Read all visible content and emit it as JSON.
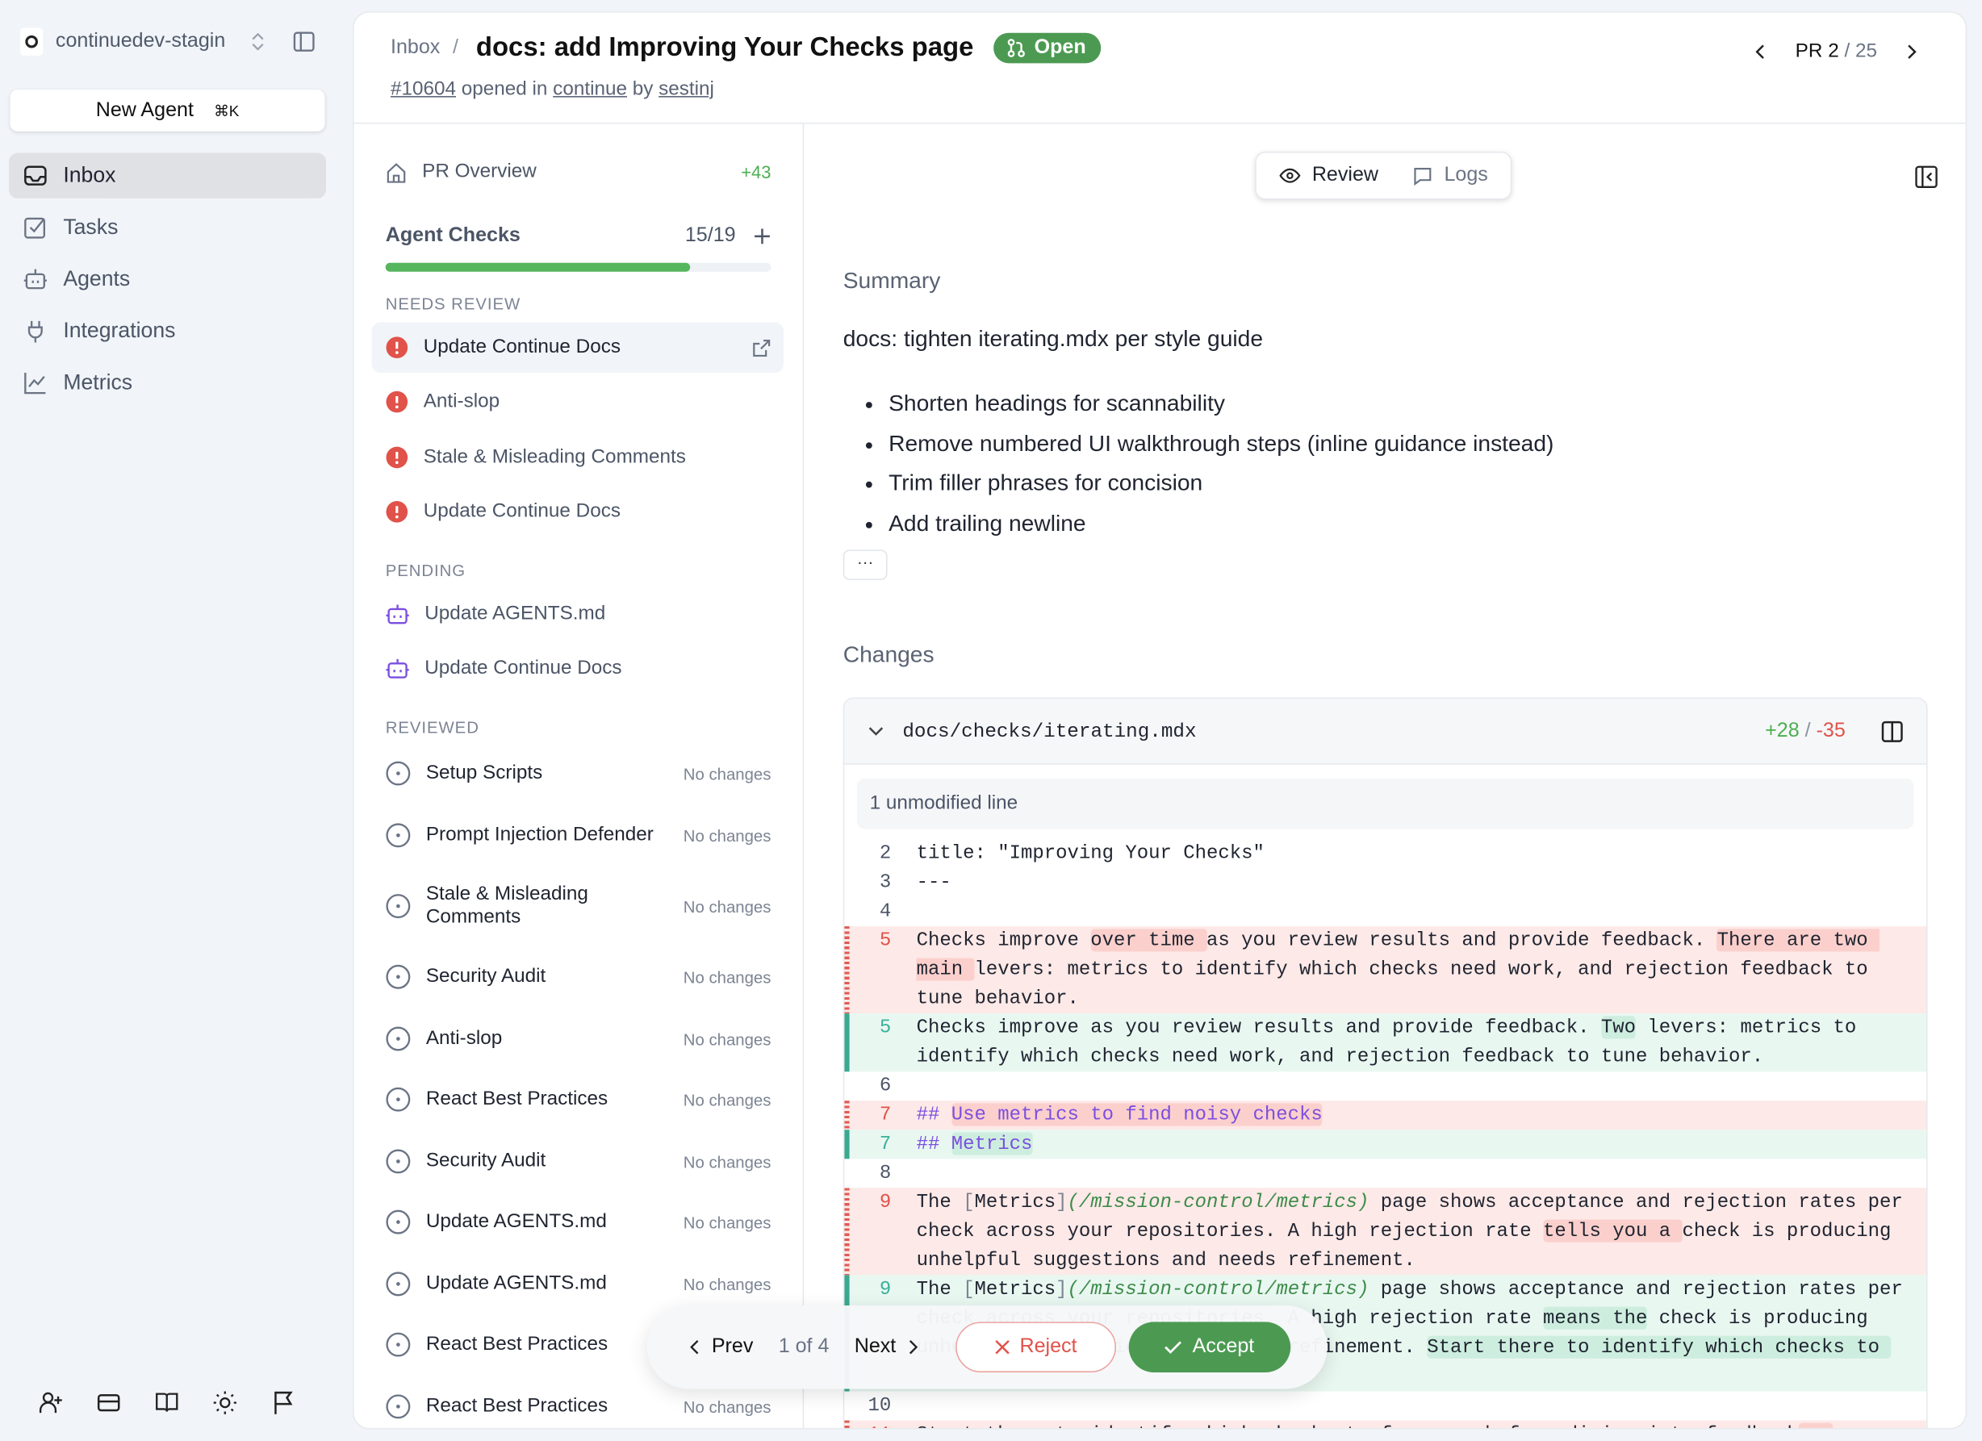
{
  "sidebar": {
    "org": "continuedev-stagin",
    "new_agent": "New Agent",
    "shortcut": "⌘K",
    "items": [
      {
        "label": "Inbox",
        "icon": "inbox-icon",
        "active": true
      },
      {
        "label": "Tasks",
        "icon": "tasks-icon"
      },
      {
        "label": "Agents",
        "icon": "robot-icon"
      },
      {
        "label": "Integrations",
        "icon": "plug-icon"
      },
      {
        "label": "Metrics",
        "icon": "chart-icon"
      }
    ],
    "bottom_icons": [
      "user-plus-icon",
      "card-icon",
      "book-icon",
      "sun-icon",
      "flag-icon"
    ]
  },
  "header": {
    "breadcrumb": "Inbox",
    "separator": "/",
    "title": "docs: add Improving Your Checks page",
    "status": "Open",
    "pr_number": "#10604",
    "opened_in": "opened in",
    "repo": "continue",
    "by": "by",
    "author": "sestinj",
    "pr_label": "PR",
    "pr_current": "2",
    "pr_total": "/ 25"
  },
  "checks": {
    "overview": "PR Overview",
    "overview_delta": "+43",
    "title": "Agent Checks",
    "count": "15/19",
    "progress": 0.79,
    "colors": {
      "progress": "#55b65e",
      "error": "#e0524a",
      "pending": "#7b4fe0"
    },
    "needs_review_label": "NEEDS REVIEW",
    "needs_review": [
      "Update Continue Docs",
      "Anti-slop",
      "Stale & Misleading Comments",
      "Update Continue Docs"
    ],
    "pending_label": "PENDING",
    "pending": [
      "Update AGENTS.md",
      "Update Continue Docs"
    ],
    "reviewed_label": "REVIEWED",
    "reviewed": [
      {
        "name": "Setup Scripts",
        "status": "No changes"
      },
      {
        "name": "Prompt Injection Defender",
        "status": "No changes"
      },
      {
        "name": "Stale & Misleading Comments",
        "status": "No changes"
      },
      {
        "name": "Security Audit",
        "status": "No changes"
      },
      {
        "name": "Anti-slop",
        "status": "No changes"
      },
      {
        "name": "React Best Practices",
        "status": "No changes"
      },
      {
        "name": "Security Audit",
        "status": "No changes"
      },
      {
        "name": "Update AGENTS.md",
        "status": "No changes"
      },
      {
        "name": "Update AGENTS.md",
        "status": "No changes"
      },
      {
        "name": "React Best Practices",
        "status": ""
      },
      {
        "name": "React Best Practices",
        "status": "No changes"
      }
    ]
  },
  "main": {
    "tabs": [
      {
        "label": "Review",
        "active": true
      },
      {
        "label": "Logs"
      }
    ],
    "summary_heading": "Summary",
    "summary_text": "docs: tighten iterating.mdx per style guide",
    "bullets": [
      "Shorten headings for scannability",
      "Remove numbered UI walkthrough steps (inline guidance instead)",
      "Trim filler phrases for concision",
      "Add trailing newline"
    ],
    "more": "···",
    "changes_heading": "Changes",
    "file": {
      "path": "docs/checks/iterating.mdx",
      "additions": "+28",
      "sep": "/",
      "deletions": "-35",
      "unmodified": "1 unmodified line"
    },
    "diff": [
      {
        "n": "2",
        "t": "ctx",
        "s": [
          [
            "title: \"Improving Your Checks\"",
            ""
          ]
        ]
      },
      {
        "n": "3",
        "t": "ctx",
        "s": [
          [
            "---",
            ""
          ]
        ]
      },
      {
        "n": "4",
        "t": "ctx",
        "s": [
          [
            "",
            ""
          ]
        ]
      },
      {
        "n": "5",
        "t": "del",
        "s": [
          [
            "Checks improve ",
            ""
          ],
          [
            "over time ",
            "hl"
          ],
          [
            "as you review results and provide feedback. ",
            ""
          ],
          [
            "There are two main ",
            "hl"
          ],
          [
            "levers: metrics to identify which checks need work, and rejection feedback to tune behavior.",
            ""
          ]
        ]
      },
      {
        "n": "5",
        "t": "add",
        "s": [
          [
            "Checks improve as you review results and provide feedback. ",
            ""
          ],
          [
            "Two",
            "hl"
          ],
          [
            " levers: metrics to identify which checks need work, and rejection feedback to tune behavior.",
            ""
          ]
        ]
      },
      {
        "n": "6",
        "t": "ctx",
        "s": [
          [
            "",
            ""
          ]
        ]
      },
      {
        "n": "7",
        "t": "del",
        "s": [
          [
            "## ",
            "head"
          ],
          [
            "Use metrics to find noisy checks",
            "head hl"
          ]
        ]
      },
      {
        "n": "7",
        "t": "add",
        "s": [
          [
            "## ",
            "head"
          ],
          [
            "Metrics",
            "head hl"
          ]
        ]
      },
      {
        "n": "8",
        "t": "ctx",
        "s": [
          [
            "",
            ""
          ]
        ]
      },
      {
        "n": "9",
        "t": "del",
        "s": [
          [
            "The ",
            ""
          ],
          [
            "[",
            "br"
          ],
          [
            "Metrics",
            ""
          ],
          [
            "]",
            "br"
          ],
          [
            "(/mission-control/metrics)",
            "link"
          ],
          [
            " page shows acceptance and rejection rates per check across your repositories. A high rejection rate ",
            ""
          ],
          [
            "tells you a ",
            "hl"
          ],
          [
            "check is producing unhelpful suggestions and needs refinement.",
            ""
          ]
        ]
      },
      {
        "n": "9",
        "t": "add",
        "s": [
          [
            "The ",
            ""
          ],
          [
            "[",
            "br"
          ],
          [
            "Metrics",
            ""
          ],
          [
            "]",
            "br"
          ],
          [
            "(/mission-control/metrics)",
            "link"
          ],
          [
            " page shows acceptance and rejection rates per check across your repositories. A high rejection rate ",
            ""
          ],
          [
            "means the",
            "hl"
          ],
          [
            " check is producing unhelpful suggestions and needs refinement. ",
            ""
          ],
          [
            "Start there to identify which checks to ",
            "hl"
          ],
          [
            "\n ",
            ""
          ]
        ]
      },
      {
        "n": "10",
        "t": "ctx",
        "s": [
          [
            "",
            ""
          ]
        ]
      },
      {
        "n": "11",
        "t": "del",
        "s": [
          [
            "Start there to identify which checks to focus on before diving into ",
            ""
          ],
          [
            "feedback",
            ""
          ],
          [
            " or",
            "hl"
          ]
        ]
      }
    ]
  },
  "action_bar": {
    "prev": "Prev",
    "position": "1 of 4",
    "next": "Next",
    "reject": "Reject",
    "accept": "Accept"
  }
}
